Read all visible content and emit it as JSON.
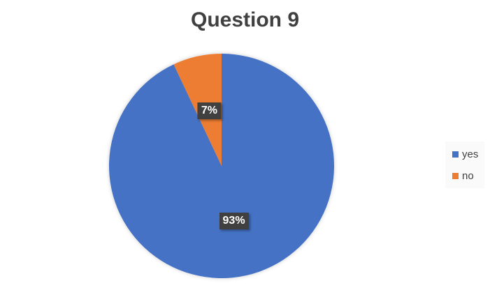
{
  "chart_data": {
    "type": "pie",
    "title": "Question 9",
    "categories": [
      "yes",
      "no"
    ],
    "values": [
      93,
      7
    ],
    "data_labels": [
      "93%",
      "7%"
    ],
    "colors": [
      "#4472C4",
      "#ED7D31"
    ],
    "legend_position": "right"
  }
}
